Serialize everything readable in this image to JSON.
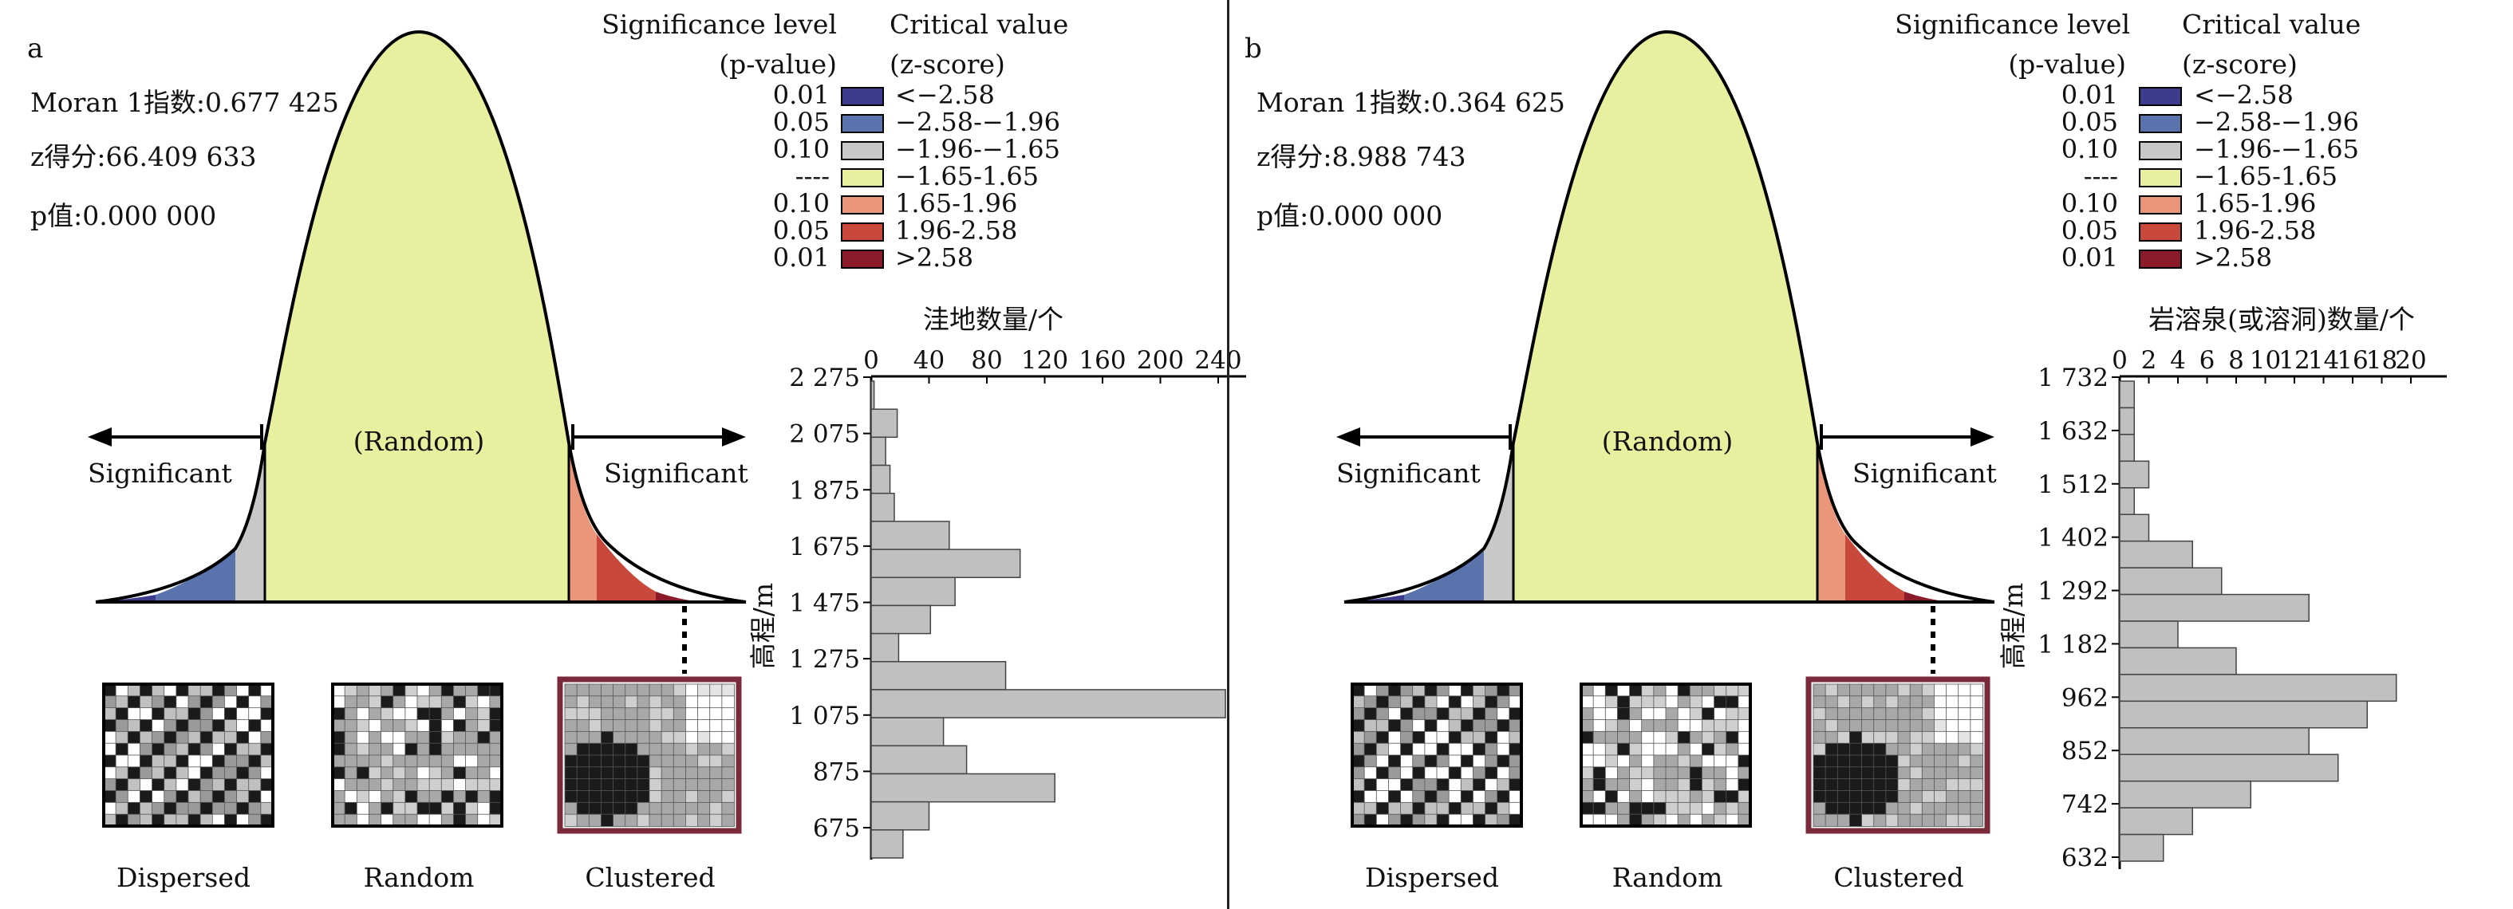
{
  "panels": [
    {
      "label": "a",
      "stats": [
        "Moran 1指数:0.677 425",
        "z得分:66.409 633",
        "p值:0.000 000"
      ],
      "legend": {
        "header_left": [
          "Significance level",
          "(p-value)"
        ],
        "header_right": [
          "Critical value",
          "(z-score)"
        ],
        "rows": [
          {
            "p": "0.01",
            "z": "<−2.58",
            "color": "#3d3b8e"
          },
          {
            "p": "0.05",
            "z": "−2.58-−1.96",
            "color": "#5b73ad"
          },
          {
            "p": "0.10",
            "z": "−1.96-−1.65",
            "color": "#c8c8c8"
          },
          {
            "p": "----",
            "z": "−1.65-1.65",
            "color": "#e8f0a0"
          },
          {
            "p": "0.10",
            "z": "1.65-1.96",
            "color": "#e9967a"
          },
          {
            "p": "0.05",
            "z": "1.96-2.58",
            "color": "#c8483c"
          },
          {
            "p": "0.01",
            "z": ">2.58",
            "color": "#8b1a2a"
          }
        ]
      },
      "curve_labels": {
        "random": "(Random)",
        "sig_left": "Significant",
        "sig_right": "Significant"
      },
      "patterns": [
        "Dispersed",
        "Random",
        "Clustered"
      ]
    },
    {
      "label": "b",
      "stats": [
        "Moran 1指数:0.364 625",
        "z得分:8.988 743",
        "p值:0.000 000"
      ],
      "legend": {
        "header_left": [
          "Significance level",
          "(p-value)"
        ],
        "header_right": [
          "Critical value",
          "(z-score)"
        ],
        "rows": [
          {
            "p": "0.01",
            "z": "<−2.58",
            "color": "#3d3b8e"
          },
          {
            "p": "0.05",
            "z": "−2.58-−1.96",
            "color": "#5b73ad"
          },
          {
            "p": "0.10",
            "z": "−1.96-−1.65",
            "color": "#c8c8c8"
          },
          {
            "p": "----",
            "z": "−1.65-1.65",
            "color": "#e8f0a0"
          },
          {
            "p": "0.10",
            "z": "1.65-1.96",
            "color": "#e9967a"
          },
          {
            "p": "0.05",
            "z": "1.96-2.58",
            "color": "#c8483c"
          },
          {
            "p": "0.01",
            "z": ">2.58",
            "color": "#8b1a2a"
          }
        ]
      },
      "curve_labels": {
        "random": "(Random)",
        "sig_left": "Significant",
        "sig_right": "Significant"
      },
      "patterns": [
        "Dispersed",
        "Random",
        "Clustered"
      ]
    }
  ],
  "chart_data": [
    {
      "type": "bar",
      "orientation": "horizontal",
      "title": "洼地数量/个",
      "ylabel": "高程/m",
      "x_ticks": [
        "0",
        "40",
        "80",
        "120",
        "160",
        "200",
        "240"
      ],
      "xlim": [
        0,
        250
      ],
      "y_ticks": [
        "2 275",
        "2 075",
        "1 875",
        "1 675",
        "1 475",
        "1 275",
        "1 075",
        "875",
        "675"
      ],
      "values": [
        2,
        18,
        10,
        13,
        16,
        54,
        103,
        58,
        41,
        19,
        93,
        245,
        50,
        66,
        127,
        40,
        22
      ],
      "bar_fill": "#c0c0c0"
    },
    {
      "type": "bar",
      "orientation": "horizontal",
      "title": "岩溶泉(或溶洞)数量/个",
      "ylabel": "高程/m",
      "x_ticks": [
        "0",
        "2",
        "4",
        "6",
        "8",
        "10",
        "12",
        "14",
        "16",
        "18",
        "20"
      ],
      "xlim": [
        0,
        21
      ],
      "y_ticks": [
        "1 732",
        "1 632",
        "1 512",
        "1 402",
        "1 292",
        "1 182",
        "962",
        "852",
        "742",
        "632"
      ],
      "values": [
        1,
        1,
        1,
        2,
        1,
        2,
        5,
        7,
        13,
        4,
        8,
        19,
        17,
        13,
        15,
        9,
        5,
        3
      ],
      "bar_fill": "#c0c0c0"
    }
  ]
}
